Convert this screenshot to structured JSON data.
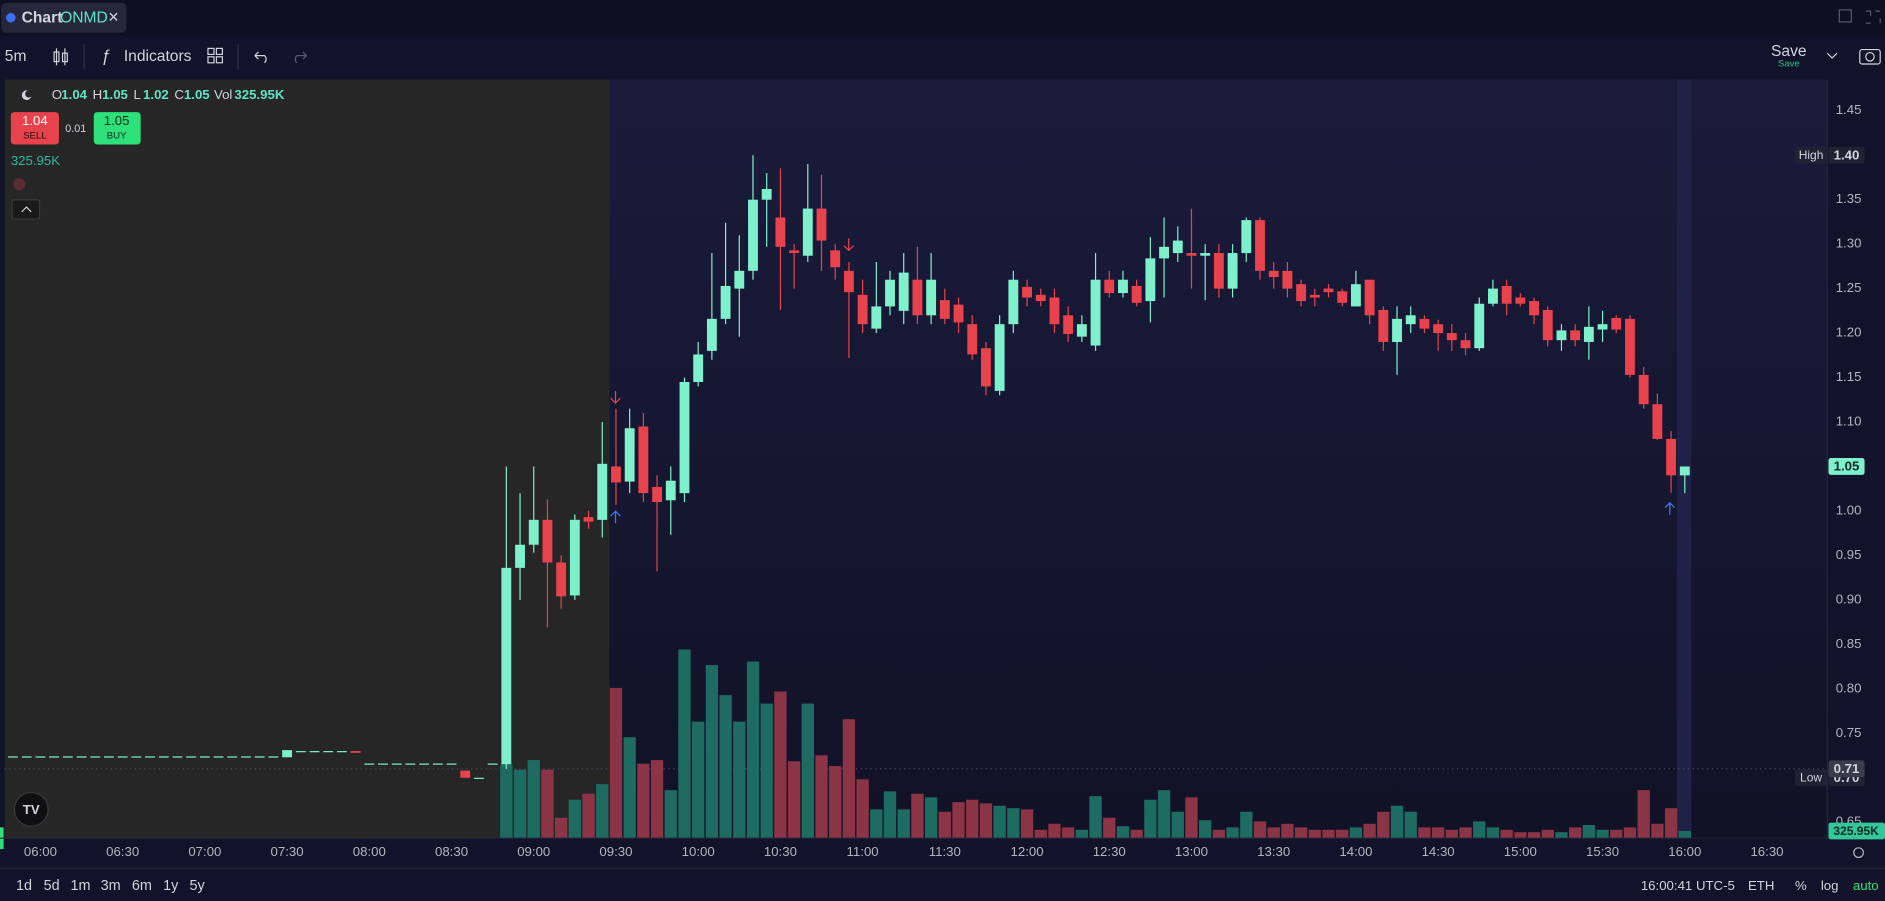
{
  "ui": {
    "tab_label": "Chart",
    "symbol": "ONMD",
    "close_icon": "×",
    "interval": "5m",
    "indicators": "Indicators",
    "save": "Save",
    "save_sub": "Save",
    "legend_keys": [
      "O",
      "H",
      "L",
      "C",
      "Vol"
    ],
    "legend_volume": "325.95K",
    "sell_price": "1.04",
    "sell_label": "SELL",
    "spread": "0.01",
    "buy_price": "1.05",
    "buy_label": "BUY",
    "volume_line": "325.95K",
    "ranges": [
      "1d",
      "5d",
      "1m",
      "3m",
      "6m",
      "1y",
      "5y"
    ],
    "clock": "16:00:41 UTC-5",
    "session": "ETH",
    "percent": "%",
    "log": "log",
    "auto": "auto"
  },
  "chart_data": {
    "type": "candlestick",
    "x": [
      "05:50",
      "05:55",
      "06:00",
      "06:05",
      "06:10",
      "06:15",
      "06:20",
      "06:25",
      "06:30",
      "06:35",
      "06:40",
      "06:45",
      "06:50",
      "06:55",
      "07:00",
      "07:05",
      "07:10",
      "07:15",
      "07:20",
      "07:25",
      "07:30",
      "07:35",
      "07:40",
      "07:45",
      "07:50",
      "07:55",
      "08:00",
      "08:05",
      "08:10",
      "08:15",
      "08:20",
      "08:25",
      "08:30",
      "08:35",
      "08:40",
      "08:45",
      "08:50",
      "08:55",
      "09:00",
      "09:05",
      "09:10",
      "09:15",
      "09:20",
      "09:25",
      "09:30",
      "09:35",
      "09:40",
      "09:45",
      "09:50",
      "09:55",
      "10:00",
      "10:05",
      "10:10",
      "10:15",
      "10:20",
      "10:25",
      "10:30",
      "10:35",
      "10:40",
      "10:45",
      "10:50",
      "10:55",
      "11:00",
      "11:05",
      "11:10",
      "11:15",
      "11:20",
      "11:25",
      "11:30",
      "11:35",
      "11:40",
      "11:45",
      "11:50",
      "11:55",
      "12:00",
      "12:05",
      "12:10",
      "12:15",
      "12:20",
      "12:25",
      "12:30",
      "12:35",
      "12:40",
      "12:45",
      "12:50",
      "12:55",
      "13:00",
      "13:05",
      "13:10",
      "13:15",
      "13:20",
      "13:25",
      "13:30",
      "13:35",
      "13:40",
      "13:45",
      "13:50",
      "13:55",
      "14:00",
      "14:05",
      "14:10",
      "14:15",
      "14:20",
      "14:25",
      "14:30",
      "14:35",
      "14:40",
      "14:45",
      "14:50",
      "14:55",
      "15:00",
      "15:05",
      "15:10",
      "15:15",
      "15:20",
      "15:25",
      "15:30",
      "15:35",
      "15:40",
      "15:45",
      "15:50",
      "15:55",
      "16:00"
    ],
    "open": [
      0.724,
      0.724,
      0.724,
      0.724,
      0.724,
      0.724,
      0.724,
      0.724,
      0.724,
      0.724,
      0.724,
      0.724,
      0.724,
      0.724,
      0.724,
      0.724,
      0.724,
      0.724,
      0.724,
      0.724,
      0.723,
      0.73,
      0.73,
      0.73,
      0.73,
      0.73,
      0.716,
      0.716,
      0.716,
      0.716,
      0.716,
      0.716,
      0.716,
      0.708,
      0.7,
      0.716,
      0.715,
      0.936,
      0.962,
      0.99,
      0.942,
      0.905,
      0.993,
      0.99,
      1.05,
      1.033,
      1.095,
      1.027,
      1.012,
      1.02,
      1.145,
      1.18,
      1.216,
      1.25,
      1.27,
      1.35,
      1.33,
      1.293,
      1.287,
      1.34,
      1.293,
      1.27,
      1.243,
      1.205,
      1.23,
      1.225,
      1.26,
      1.22,
      1.237,
      1.232,
      1.21,
      1.183,
      1.135,
      1.21,
      1.252,
      1.243,
      1.24,
      1.22,
      1.196,
      1.186,
      1.26,
      1.245,
      1.253,
      1.236,
      1.284,
      1.29,
      1.29,
      1.287,
      1.29,
      1.25,
      1.29,
      1.327,
      1.27,
      1.27,
      1.255,
      1.243,
      1.25,
      1.247,
      1.23,
      1.26,
      1.226,
      1.19,
      1.21,
      1.216,
      1.21,
      1.2,
      1.192,
      1.183,
      1.233,
      1.253,
      1.24,
      1.236,
      1.226,
      1.192,
      1.203,
      1.19,
      1.204,
      1.217,
      1.216,
      1.153,
      1.12,
      1.081,
      1.04
    ],
    "high": [
      0.724,
      0.724,
      0.724,
      0.724,
      0.724,
      0.724,
      0.724,
      0.724,
      0.724,
      0.724,
      0.724,
      0.724,
      0.724,
      0.724,
      0.724,
      0.724,
      0.724,
      0.724,
      0.724,
      0.724,
      0.731,
      0.73,
      0.73,
      0.73,
      0.73,
      0.73,
      0.716,
      0.716,
      0.716,
      0.716,
      0.716,
      0.716,
      0.716,
      0.708,
      0.7,
      0.716,
      1.05,
      1.02,
      1.05,
      1.013,
      0.95,
      0.996,
      1.0,
      1.1,
      1.115,
      1.115,
      1.11,
      1.04,
      1.05,
      1.15,
      1.19,
      1.29,
      1.324,
      1.31,
      1.4,
      1.38,
      1.385,
      1.3,
      1.39,
      1.378,
      1.3,
      1.28,
      1.26,
      1.28,
      1.27,
      1.29,
      1.297,
      1.29,
      1.25,
      1.24,
      1.22,
      1.19,
      1.22,
      1.27,
      1.26,
      1.25,
      1.25,
      1.23,
      1.22,
      1.29,
      1.27,
      1.27,
      1.26,
      1.308,
      1.33,
      1.32,
      1.34,
      1.3,
      1.3,
      1.3,
      1.33,
      1.33,
      1.28,
      1.28,
      1.26,
      1.25,
      1.255,
      1.25,
      1.27,
      1.26,
      1.23,
      1.23,
      1.23,
      1.22,
      1.215,
      1.21,
      1.2,
      1.24,
      1.26,
      1.26,
      1.245,
      1.24,
      1.23,
      1.21,
      1.21,
      1.23,
      1.225,
      1.22,
      1.22,
      1.162,
      1.132,
      1.09,
      1.05
    ],
    "low": [
      0.724,
      0.724,
      0.724,
      0.724,
      0.724,
      0.724,
      0.724,
      0.724,
      0.724,
      0.724,
      0.724,
      0.724,
      0.724,
      0.724,
      0.724,
      0.724,
      0.724,
      0.724,
      0.724,
      0.724,
      0.723,
      0.73,
      0.73,
      0.73,
      0.73,
      0.728,
      0.716,
      0.716,
      0.716,
      0.716,
      0.716,
      0.716,
      0.716,
      0.7,
      0.7,
      0.716,
      0.71,
      0.9,
      0.953,
      0.869,
      0.89,
      0.9,
      0.98,
      0.97,
      1.007,
      1.02,
      1.01,
      0.932,
      0.973,
      1.01,
      1.14,
      1.17,
      1.21,
      1.196,
      1.26,
      1.297,
      1.226,
      1.25,
      1.28,
      1.27,
      1.26,
      1.172,
      1.2,
      1.2,
      1.22,
      1.21,
      1.21,
      1.21,
      1.21,
      1.2,
      1.17,
      1.13,
      1.13,
      1.2,
      1.23,
      1.23,
      1.2,
      1.19,
      1.19,
      1.18,
      1.24,
      1.24,
      1.23,
      1.212,
      1.24,
      1.28,
      1.25,
      1.237,
      1.24,
      1.24,
      1.28,
      1.26,
      1.25,
      1.24,
      1.23,
      1.23,
      1.24,
      1.23,
      1.23,
      1.21,
      1.18,
      1.153,
      1.2,
      1.2,
      1.18,
      1.18,
      1.175,
      1.18,
      1.23,
      1.22,
      1.23,
      1.21,
      1.185,
      1.18,
      1.185,
      1.17,
      1.19,
      1.2,
      1.15,
      1.115,
      1.08,
      1.02,
      1.02
    ],
    "close": [
      0.724,
      0.724,
      0.724,
      0.724,
      0.724,
      0.724,
      0.724,
      0.724,
      0.724,
      0.724,
      0.724,
      0.724,
      0.724,
      0.724,
      0.724,
      0.724,
      0.724,
      0.724,
      0.724,
      0.724,
      0.731,
      0.73,
      0.73,
      0.73,
      0.73,
      0.728,
      0.716,
      0.716,
      0.716,
      0.716,
      0.716,
      0.716,
      0.716,
      0.7,
      0.7,
      0.716,
      0.936,
      0.962,
      0.99,
      0.942,
      0.904,
      0.99,
      0.988,
      1.053,
      1.032,
      1.093,
      1.02,
      1.01,
      1.034,
      1.145,
      1.176,
      1.216,
      1.253,
      1.27,
      1.35,
      1.362,
      1.297,
      1.29,
      1.34,
      1.304,
      1.274,
      1.246,
      1.21,
      1.23,
      1.26,
      1.268,
      1.22,
      1.26,
      1.216,
      1.212,
      1.176,
      1.14,
      1.21,
      1.26,
      1.24,
      1.236,
      1.21,
      1.199,
      1.21,
      1.26,
      1.245,
      1.26,
      1.234,
      1.284,
      1.297,
      1.304,
      1.287,
      1.29,
      1.25,
      1.29,
      1.327,
      1.27,
      1.263,
      1.25,
      1.236,
      1.24,
      1.246,
      1.234,
      1.255,
      1.22,
      1.19,
      1.216,
      1.22,
      1.205,
      1.2,
      1.192,
      1.183,
      1.233,
      1.25,
      1.233,
      1.233,
      1.22,
      1.192,
      1.203,
      1.192,
      1.207,
      1.21,
      1.204,
      1.153,
      1.12,
      1.081,
      1.04,
      1.05
    ],
    "volume": [
      0.5,
      0.5,
      0.5,
      0.5,
      0.5,
      0.5,
      0.5,
      0.5,
      0.5,
      0.5,
      0.5,
      0.5,
      0.5,
      0.5,
      0.5,
      0.5,
      0.5,
      0.5,
      0.5,
      0.5,
      0.5,
      0.5,
      0.5,
      0.5,
      0.5,
      0.5,
      0.5,
      0.5,
      0.5,
      0.5,
      0.5,
      0.5,
      0.5,
      0.5,
      0.5,
      0.5,
      61,
      57,
      65,
      57,
      17,
      32,
      37,
      45,
      125,
      84,
      62,
      65,
      40,
      157,
      97,
      144,
      119,
      97,
      147,
      112,
      122,
      64,
      112,
      69,
      60,
      99,
      49,
      24,
      39,
      24,
      37,
      34,
      22,
      30,
      32,
      29,
      27,
      25,
      24,
      7,
      12,
      9,
      7,
      35,
      17,
      10,
      7,
      32,
      40,
      22,
      34,
      15,
      7,
      9,
      22,
      14,
      9,
      12,
      9,
      7,
      7,
      7,
      9,
      12,
      22,
      27,
      22,
      9,
      9,
      7,
      9,
      14,
      9,
      7,
      5,
      5,
      7,
      5,
      9,
      11,
      7,
      7,
      9,
      40,
      12,
      25,
      6
    ],
    "up_color": "#7ff0cc",
    "down_color": "#e8434c",
    "volume_up_color": "#1e6b62",
    "volume_down_color": "#8a3446",
    "xlim": [
      "05:47",
      "16:52"
    ],
    "xticks": [
      "06:00",
      "06:30",
      "07:00",
      "07:30",
      "08:00",
      "08:30",
      "09:00",
      "09:30",
      "10:00",
      "10:30",
      "11:00",
      "11:30",
      "12:00",
      "12:30",
      "13:00",
      "13:30",
      "14:00",
      "14:30",
      "15:00",
      "15:30",
      "16:00",
      "16:30"
    ],
    "ylim": [
      0.632,
      1.485
    ],
    "yticks": [
      1.45,
      {
        "value": 1.4,
        "label": "1.40"
      },
      1.35,
      {
        "value": 1.3,
        "label": "1.30"
      },
      1.25,
      {
        "value": 1.2,
        "label": "1.20"
      },
      1.15,
      {
        "value": 1.1,
        "label": "1.10"
      },
      1.05,
      {
        "value": 1.0,
        "label": "1.00"
      },
      0.95,
      {
        "value": 0.9,
        "label": "0.90"
      },
      0.85,
      {
        "value": 0.8,
        "label": "0.80"
      },
      0.75,
      {
        "value": 0.7,
        "label": "0.70"
      },
      0.65
    ],
    "grid": false,
    "log_scale": false,
    "high_marker": {
      "label": "High",
      "value": 1.4,
      "value_label": "1.40"
    },
    "low_marker": {
      "label": "Low",
      "value": 0.7,
      "value_label": "0.70"
    },
    "last_price": {
      "value": 1.05,
      "value_label": "1.05"
    },
    "prev_close": {
      "value": 0.71,
      "value_label": "0.71"
    },
    "volume_badge": "325.95K"
  }
}
